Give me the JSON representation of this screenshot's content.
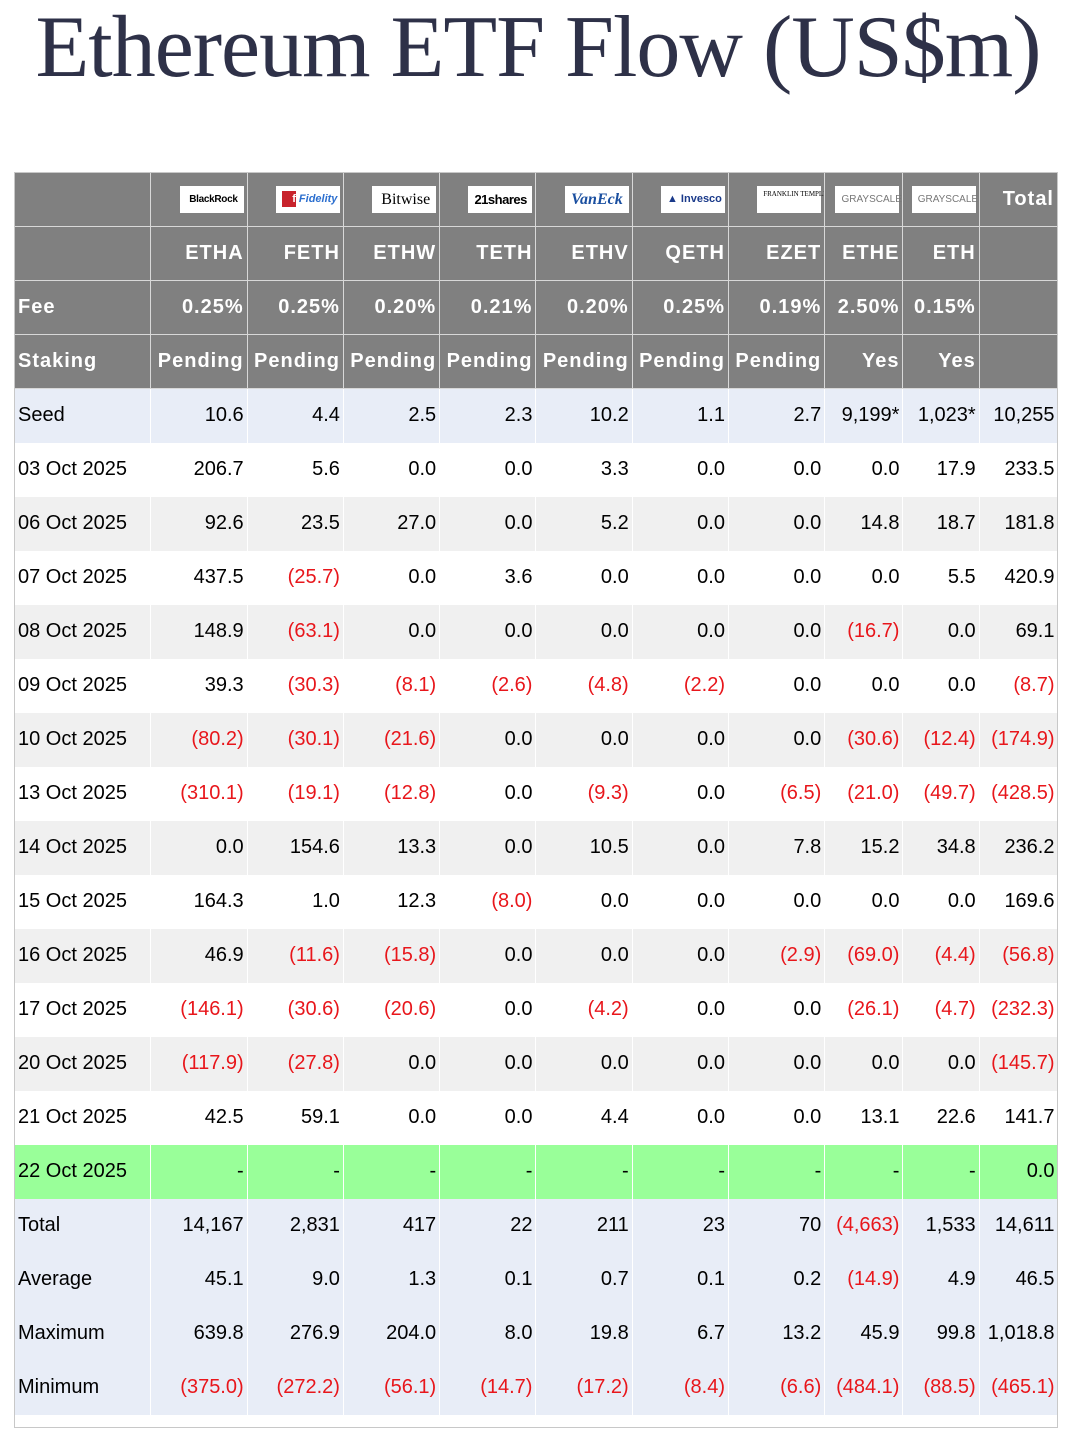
{
  "title": "Ethereum ETF Flow (US$m)",
  "colors": {
    "header_bg": "#808080",
    "negative": "#e8161b",
    "highlight_row": "#99ff99",
    "summary_row": "#e8edf7",
    "stripe": "#f0f0f0"
  },
  "issuers": [
    {
      "name": "BlackRock",
      "logo": "BlackRock",
      "icon": "blackrock-logo"
    },
    {
      "name": "Fidelity",
      "logo": "Fidelity",
      "icon": "fidelity-logo"
    },
    {
      "name": "Bitwise",
      "logo": "Bitwise",
      "icon": "bitwise-logo"
    },
    {
      "name": "21shares",
      "logo": "21shares",
      "icon": "21shares-logo"
    },
    {
      "name": "VanEck",
      "logo": "VanEck",
      "icon": "vaneck-logo"
    },
    {
      "name": "Invesco",
      "logo": "Invesco",
      "icon": "invesco-logo"
    },
    {
      "name": "Franklin Templeton",
      "logo": "FRANKLIN TEMPLETON",
      "icon": "franklin-templeton-logo"
    },
    {
      "name": "Grayscale",
      "logo": "GRAYSCALE",
      "icon": "grayscale-logo"
    },
    {
      "name": "Grayscale",
      "logo": "GRAYSCALE",
      "icon": "grayscale-logo"
    }
  ],
  "header": {
    "total_label": "Total",
    "tickers": [
      "ETHA",
      "FETH",
      "ETHW",
      "TETH",
      "ETHV",
      "QETH",
      "EZET",
      "ETHE",
      "ETH"
    ],
    "fee_label": "Fee",
    "fees": [
      "0.25%",
      "0.25%",
      "0.20%",
      "0.21%",
      "0.20%",
      "0.25%",
      "0.19%",
      "2.50%",
      "0.15%"
    ],
    "staking_label": "Staking",
    "staking": [
      "Pending",
      "Pending",
      "Pending",
      "Pending",
      "Pending",
      "Pending",
      "Pending",
      "Yes",
      "Yes"
    ]
  },
  "chart_data": {
    "type": "table",
    "title": "Ethereum ETF Flow (US$m)",
    "columns": [
      "ETHA",
      "FETH",
      "ETHW",
      "TETH",
      "ETHV",
      "QETH",
      "EZET",
      "ETHE",
      "ETH",
      "Total"
    ],
    "rows": [
      {
        "label": "Seed",
        "style": "blue",
        "cells": [
          "10.6",
          "4.4",
          "2.5",
          "2.3",
          "10.2",
          "1.1",
          "2.7",
          "9,199*",
          "1,023*",
          "10,255"
        ]
      },
      {
        "label": "03 Oct 2025",
        "style": "white",
        "cells": [
          "206.7",
          "5.6",
          "0.0",
          "0.0",
          "3.3",
          "0.0",
          "0.0",
          "0.0",
          "17.9",
          "233.5"
        ]
      },
      {
        "label": "06 Oct 2025",
        "style": "grey",
        "cells": [
          "92.6",
          "23.5",
          "27.0",
          "0.0",
          "5.2",
          "0.0",
          "0.0",
          "14.8",
          "18.7",
          "181.8"
        ]
      },
      {
        "label": "07 Oct 2025",
        "style": "white",
        "cells": [
          "437.5",
          "(25.7)",
          "0.0",
          "3.6",
          "0.0",
          "0.0",
          "0.0",
          "0.0",
          "5.5",
          "420.9"
        ]
      },
      {
        "label": "08 Oct 2025",
        "style": "grey",
        "cells": [
          "148.9",
          "(63.1)",
          "0.0",
          "0.0",
          "0.0",
          "0.0",
          "0.0",
          "(16.7)",
          "0.0",
          "69.1"
        ]
      },
      {
        "label": "09 Oct 2025",
        "style": "white",
        "cells": [
          "39.3",
          "(30.3)",
          "(8.1)",
          "(2.6)",
          "(4.8)",
          "(2.2)",
          "0.0",
          "0.0",
          "0.0",
          "(8.7)"
        ]
      },
      {
        "label": "10 Oct 2025",
        "style": "grey",
        "cells": [
          "(80.2)",
          "(30.1)",
          "(21.6)",
          "0.0",
          "0.0",
          "0.0",
          "0.0",
          "(30.6)",
          "(12.4)",
          "(174.9)"
        ]
      },
      {
        "label": "13 Oct 2025",
        "style": "white",
        "cells": [
          "(310.1)",
          "(19.1)",
          "(12.8)",
          "0.0",
          "(9.3)",
          "0.0",
          "(6.5)",
          "(21.0)",
          "(49.7)",
          "(428.5)"
        ]
      },
      {
        "label": "14 Oct 2025",
        "style": "grey",
        "cells": [
          "0.0",
          "154.6",
          "13.3",
          "0.0",
          "10.5",
          "0.0",
          "7.8",
          "15.2",
          "34.8",
          "236.2"
        ]
      },
      {
        "label": "15 Oct 2025",
        "style": "white",
        "cells": [
          "164.3",
          "1.0",
          "12.3",
          "(8.0)",
          "0.0",
          "0.0",
          "0.0",
          "0.0",
          "0.0",
          "169.6"
        ]
      },
      {
        "label": "16 Oct 2025",
        "style": "grey",
        "cells": [
          "46.9",
          "(11.6)",
          "(15.8)",
          "0.0",
          "0.0",
          "0.0",
          "(2.9)",
          "(69.0)",
          "(4.4)",
          "(56.8)"
        ]
      },
      {
        "label": "17 Oct 2025",
        "style": "white",
        "cells": [
          "(146.1)",
          "(30.6)",
          "(20.6)",
          "0.0",
          "(4.2)",
          "0.0",
          "0.0",
          "(26.1)",
          "(4.7)",
          "(232.3)"
        ]
      },
      {
        "label": "20 Oct 2025",
        "style": "grey",
        "cells": [
          "(117.9)",
          "(27.8)",
          "0.0",
          "0.0",
          "0.0",
          "0.0",
          "0.0",
          "0.0",
          "0.0",
          "(145.7)"
        ]
      },
      {
        "label": "21 Oct 2025",
        "style": "white",
        "cells": [
          "42.5",
          "59.1",
          "0.0",
          "0.0",
          "4.4",
          "0.0",
          "0.0",
          "13.1",
          "22.6",
          "141.7"
        ]
      },
      {
        "label": "22 Oct 2025",
        "style": "green",
        "cells": [
          "-",
          "-",
          "-",
          "-",
          "-",
          "-",
          "-",
          "-",
          "-",
          "0.0"
        ]
      },
      {
        "label": "Total",
        "style": "blue",
        "cells": [
          "14,167",
          "2,831",
          "417",
          "22",
          "211",
          "23",
          "70",
          "(4,663)",
          "1,533",
          "14,611"
        ]
      },
      {
        "label": "Average",
        "style": "blue",
        "cells": [
          "45.1",
          "9.0",
          "1.3",
          "0.1",
          "0.7",
          "0.1",
          "0.2",
          "(14.9)",
          "4.9",
          "46.5"
        ]
      },
      {
        "label": "Maximum",
        "style": "blue",
        "cells": [
          "639.8",
          "276.9",
          "204.0",
          "8.0",
          "19.8",
          "6.7",
          "13.2",
          "45.9",
          "99.8",
          "1,018.8"
        ]
      },
      {
        "label": "Minimum",
        "style": "blue",
        "cells": [
          "(375.0)",
          "(272.2)",
          "(56.1)",
          "(14.7)",
          "(17.2)",
          "(8.4)",
          "(6.6)",
          "(484.1)",
          "(88.5)",
          "(465.1)"
        ]
      }
    ]
  }
}
